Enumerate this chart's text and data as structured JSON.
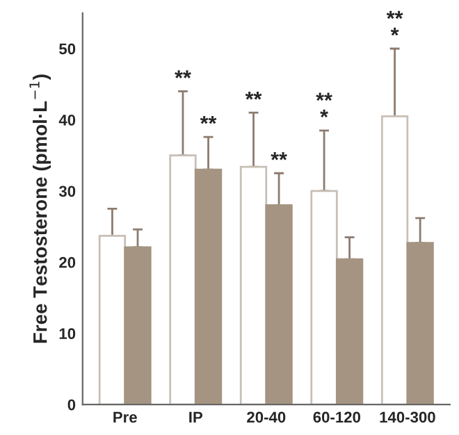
{
  "chart_data": {
    "type": "bar",
    "ylabel": "Free Testosterone (pmol·L$^{−1}$)",
    "categories": [
      "Pre",
      "IP",
      "20-40",
      "60-120",
      "140-300"
    ],
    "series": [
      {
        "color": "#ffffff",
        "values": [
          23.7,
          35,
          33.4,
          30,
          40.5
        ],
        "errors": [
          [
            23.7,
            27.5
          ],
          [
            35,
            44
          ],
          [
            33.4,
            41
          ],
          [
            30,
            38.5
          ],
          [
            40.5,
            50
          ]
        ]
      },
      {
        "color": "#a59482",
        "values": [
          22.1,
          33,
          28,
          20.4,
          22.7
        ],
        "errors": [
          [
            22.1,
            24.6
          ],
          [
            33,
            37.6
          ],
          [
            28,
            32.5
          ],
          [
            20.4,
            23.5
          ],
          [
            22.7,
            26.2
          ]
        ]
      }
    ],
    "ylim": [
      0,
      55
    ],
    "yticks": [
      0,
      10,
      20,
      30,
      40,
      50
    ],
    "grid": false,
    "legend": false,
    "annotations": [
      "**",
      "**",
      "**",
      "**",
      "**\n*",
      "**\n*"
    ]
  }
}
